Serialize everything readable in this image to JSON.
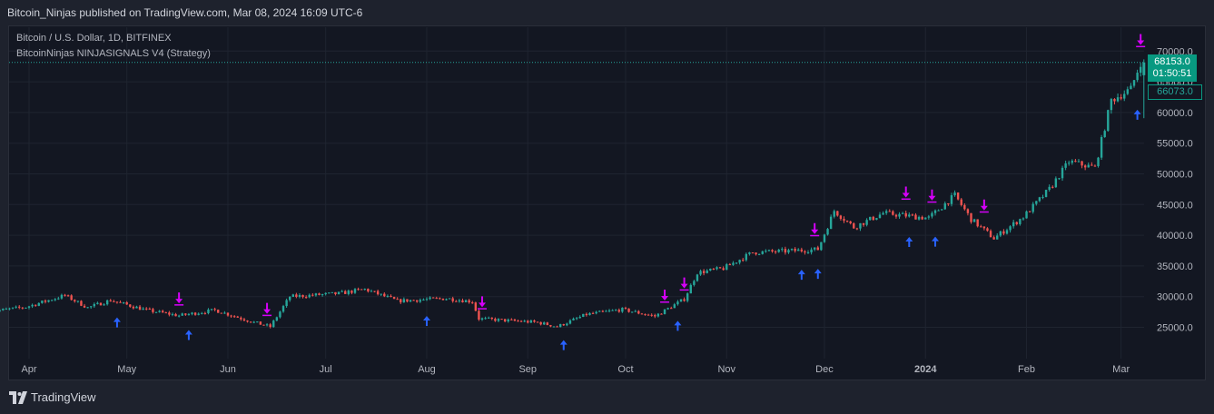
{
  "header": {
    "publisher": "Bitcoin_Ninjas published on TradingView.com, Mar 08, 2024 16:09 UTC-6"
  },
  "legend": {
    "symbol": "Bitcoin / U.S. Dollar, 1D, BITFINEX",
    "indicator": "BitcoinNinjas NINJASIGNALS V4 (Strategy)"
  },
  "price_tags": {
    "last_price": "68153.0",
    "countdown": "01:50:51",
    "open_price": "66073.0"
  },
  "footer": {
    "brand": "TradingView"
  },
  "colors": {
    "up": "#26a69a",
    "down": "#ef5350",
    "buy_arrow": "#2962ff",
    "sell_arrow": "#d500f9",
    "grid": "#1f2430",
    "axis_text": "#b2b5be"
  },
  "chart_data": {
    "type": "candlestick",
    "y_ticks": [
      25000,
      30000,
      35000,
      40000,
      45000,
      50000,
      55000,
      60000,
      65000,
      70000
    ],
    "y_tick_labels": [
      "25000.0",
      "30000.0",
      "35000.0",
      "40000.0",
      "45000.0",
      "50000.0",
      "55000.0",
      "60000.0",
      "65000.0",
      "70000.0"
    ],
    "x_labels": [
      {
        "label": "Apr",
        "date": "2023-04-01"
      },
      {
        "label": "May",
        "date": "2023-05-01"
      },
      {
        "label": "Jun",
        "date": "2023-06-01"
      },
      {
        "label": "Jul",
        "date": "2023-07-01"
      },
      {
        "label": "Aug",
        "date": "2023-08-01"
      },
      {
        "label": "Sep",
        "date": "2023-09-01"
      },
      {
        "label": "Oct",
        "date": "2023-10-01"
      },
      {
        "label": "Nov",
        "date": "2023-11-01"
      },
      {
        "label": "Dec",
        "date": "2023-12-01"
      },
      {
        "label": "2024",
        "date": "2024-01-01",
        "bold": true
      },
      {
        "label": "Feb",
        "date": "2024-02-01"
      },
      {
        "label": "Mar",
        "date": "2024-03-01"
      }
    ],
    "price_path": [
      [
        "2023-03-20",
        27500
      ],
      [
        "2023-04-01",
        28300
      ],
      [
        "2023-04-13",
        30200
      ],
      [
        "2023-04-20",
        28200
      ],
      [
        "2023-04-27",
        29400
      ],
      [
        "2023-05-08",
        27800
      ],
      [
        "2023-05-18",
        26900
      ],
      [
        "2023-05-29",
        27800
      ],
      [
        "2023-06-10",
        25800
      ],
      [
        "2023-06-15",
        25100
      ],
      [
        "2023-06-21",
        30000
      ],
      [
        "2023-07-06",
        30500
      ],
      [
        "2023-07-14",
        31200
      ],
      [
        "2023-07-24",
        29300
      ],
      [
        "2023-08-08",
        29700
      ],
      [
        "2023-08-16",
        29200
      ],
      [
        "2023-08-18",
        26400
      ],
      [
        "2023-09-05",
        25800
      ],
      [
        "2023-09-11",
        25100
      ],
      [
        "2023-09-20",
        27100
      ],
      [
        "2023-10-01",
        27900
      ],
      [
        "2023-10-11",
        26800
      ],
      [
        "2023-10-20",
        29600
      ],
      [
        "2023-10-24",
        33900
      ],
      [
        "2023-11-01",
        34600
      ],
      [
        "2023-11-10",
        37200
      ],
      [
        "2023-11-20",
        37400
      ],
      [
        "2023-11-30",
        37700
      ],
      [
        "2023-12-05",
        44000
      ],
      [
        "2023-12-11",
        41300
      ],
      [
        "2023-12-20",
        43600
      ],
      [
        "2024-01-03",
        42800
      ],
      [
        "2024-01-11",
        46500
      ],
      [
        "2024-01-16",
        42600
      ],
      [
        "2024-01-23",
        39500
      ],
      [
        "2024-02-01",
        43000
      ],
      [
        "2024-02-09",
        47500
      ],
      [
        "2024-02-15",
        52000
      ],
      [
        "2024-02-23",
        51000
      ],
      [
        "2024-02-28",
        62000
      ],
      [
        "2024-03-05",
        63800
      ],
      [
        "2024-03-08",
        68153
      ]
    ],
    "last_candle": {
      "date": "2024-03-08",
      "open": 66073,
      "close": 68153
    },
    "buy_signals": [
      "2023-04-28",
      "2023-05-20",
      "2023-08-01",
      "2023-09-12",
      "2023-10-17",
      "2023-11-24",
      "2023-11-29",
      "2023-12-27",
      "2024-01-04",
      "2024-03-06"
    ],
    "sell_signals": [
      "2023-05-17",
      "2023-06-13",
      "2023-08-18",
      "2023-10-13",
      "2023-10-19",
      "2023-11-28",
      "2023-12-26",
      "2024-01-03",
      "2024-01-19",
      "2024-03-07"
    ]
  }
}
